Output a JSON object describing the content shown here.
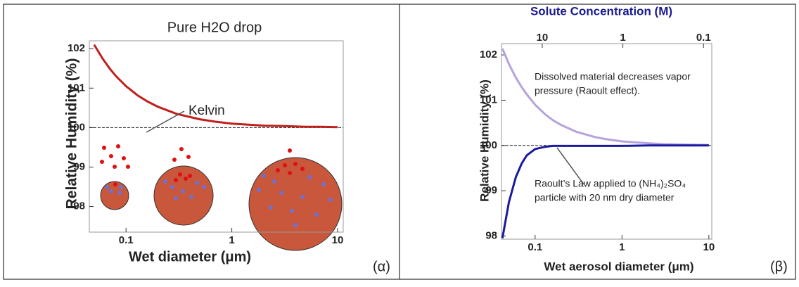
{
  "chart_data": [
    {
      "type": "line",
      "title": "Pure H2O drop",
      "panel_label": "(α)",
      "xlabel": "Wet diameter (μm)",
      "ylabel": "Relative Humidity (%)",
      "xscale": "log",
      "xlim": [
        0.045,
        11.3
      ],
      "ylim": [
        97.35,
        102.2
      ],
      "xticks": [
        0.1,
        1,
        10
      ],
      "yticks": [
        98,
        99,
        100,
        101,
        102
      ],
      "hline": 100,
      "annotations": [
        "Kelvin"
      ],
      "x": [
        0.05,
        0.06,
        0.07,
        0.08,
        0.1,
        0.13,
        0.16,
        0.2,
        0.3,
        0.5,
        0.7,
        1,
        2,
        3,
        5,
        7,
        10
      ],
      "series": [
        {
          "color": "#c0201c",
          "values": [
            102.1,
            101.75,
            101.5,
            101.31,
            101.05,
            100.81,
            100.66,
            100.53,
            100.35,
            100.21,
            100.15,
            100.1,
            100.05,
            100.04,
            100.02,
            100.02,
            100.01
          ]
        }
      ]
    },
    {
      "type": "line",
      "title": "Solute Concentration (M)",
      "panel_label": "(β)",
      "xlabel": "Wet aerosol diameter (μm)",
      "ylabel": "Relative Humidity (%)",
      "xscale": "log",
      "xlim": [
        0.041,
        10.8
      ],
      "ylim": [
        97.93,
        102.25
      ],
      "xticks": [
        0.1,
        1,
        10
      ],
      "yticks": [
        98,
        99,
        100,
        101,
        102
      ],
      "x2lim": [
        32,
        0.079
      ],
      "x2ticks": [
        10,
        1,
        0.1
      ],
      "hline": 100,
      "annotations": [
        "Dissolved material decreases vapor",
        "pressure (Raoult effect).",
        "Raoult’s Law applied to (NH₄)₂SO₄",
        "particle with 20 nm dry diameter"
      ],
      "x": [
        0.042,
        0.05,
        0.06,
        0.07,
        0.08,
        0.1,
        0.13,
        0.16,
        0.2,
        0.3,
        0.5,
        0.7,
        1,
        2,
        3,
        5,
        10
      ],
      "series": [
        {
          "color": "#b4a3dc",
          "values": [
            102.14,
            101.8,
            101.5,
            101.29,
            101.13,
            100.9,
            100.69,
            100.56,
            100.45,
            100.3,
            100.18,
            100.13,
            100.09,
            100.05,
            100.03,
            100.02,
            100.01
          ]
        },
        {
          "color": "#1a1aa0",
          "values": [
            97.95,
            98.75,
            99.3,
            99.6,
            99.78,
            99.92,
            99.97,
            99.99,
            99.99,
            99.99,
            99.99,
            99.99,
            99.99,
            100,
            100,
            100,
            100
          ]
        }
      ]
    }
  ]
}
